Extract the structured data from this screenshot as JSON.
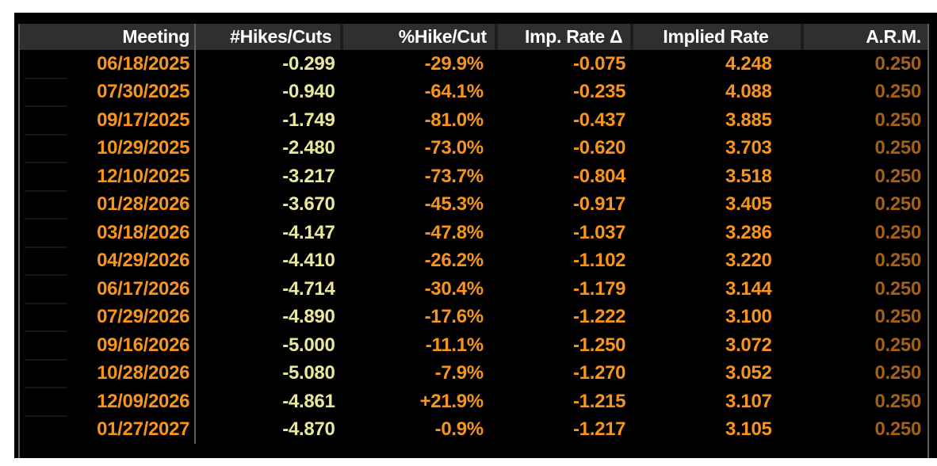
{
  "colors": {
    "orange": "#f7941e",
    "yellow": "#e9e79b",
    "dim": "#a4601a",
    "header_bg": "#2f2f2f",
    "header_text": "#ffffff",
    "background": "#000000",
    "frame": "#ffffff",
    "border": "#5f5f5f"
  },
  "table": {
    "columns": [
      {
        "key": "meeting",
        "label": "Meeting",
        "style": "orange"
      },
      {
        "key": "hikes-cuts",
        "label": "#Hikes/Cuts",
        "style": "yellow"
      },
      {
        "key": "pct-hike-cut",
        "label": "%Hike/Cut",
        "style": "orange"
      },
      {
        "key": "imp-rate-delta",
        "label": "Imp. Rate Δ",
        "style": "orange"
      },
      {
        "key": "implied-rate",
        "label": "Implied Rate",
        "style": "orange"
      },
      {
        "key": "arm",
        "label": "A.R.M.",
        "style": "dim"
      }
    ],
    "rows": [
      [
        "06/18/2025",
        "-0.299",
        "-29.9%",
        "-0.075",
        "4.248",
        "0.250"
      ],
      [
        "07/30/2025",
        "-0.940",
        "-64.1%",
        "-0.235",
        "4.088",
        "0.250"
      ],
      [
        "09/17/2025",
        "-1.749",
        "-81.0%",
        "-0.437",
        "3.885",
        "0.250"
      ],
      [
        "10/29/2025",
        "-2.480",
        "-73.0%",
        "-0.620",
        "3.703",
        "0.250"
      ],
      [
        "12/10/2025",
        "-3.217",
        "-73.7%",
        "-0.804",
        "3.518",
        "0.250"
      ],
      [
        "01/28/2026",
        "-3.670",
        "-45.3%",
        "-0.917",
        "3.405",
        "0.250"
      ],
      [
        "03/18/2026",
        "-4.147",
        "-47.8%",
        "-1.037",
        "3.286",
        "0.250"
      ],
      [
        "04/29/2026",
        "-4.410",
        "-26.2%",
        "-1.102",
        "3.220",
        "0.250"
      ],
      [
        "06/17/2026",
        "-4.714",
        "-30.4%",
        "-1.179",
        "3.144",
        "0.250"
      ],
      [
        "07/29/2026",
        "-4.890",
        "-17.6%",
        "-1.222",
        "3.100",
        "0.250"
      ],
      [
        "09/16/2026",
        "-5.000",
        "-11.1%",
        "-1.250",
        "3.072",
        "0.250"
      ],
      [
        "10/28/2026",
        "-5.080",
        "-7.9%",
        "-1.270",
        "3.052",
        "0.250"
      ],
      [
        "12/09/2026",
        "-4.861",
        "+21.9%",
        "-1.215",
        "3.107",
        "0.250"
      ],
      [
        "01/27/2027",
        "-4.870",
        "-0.9%",
        "-1.217",
        "3.105",
        "0.250"
      ]
    ]
  }
}
